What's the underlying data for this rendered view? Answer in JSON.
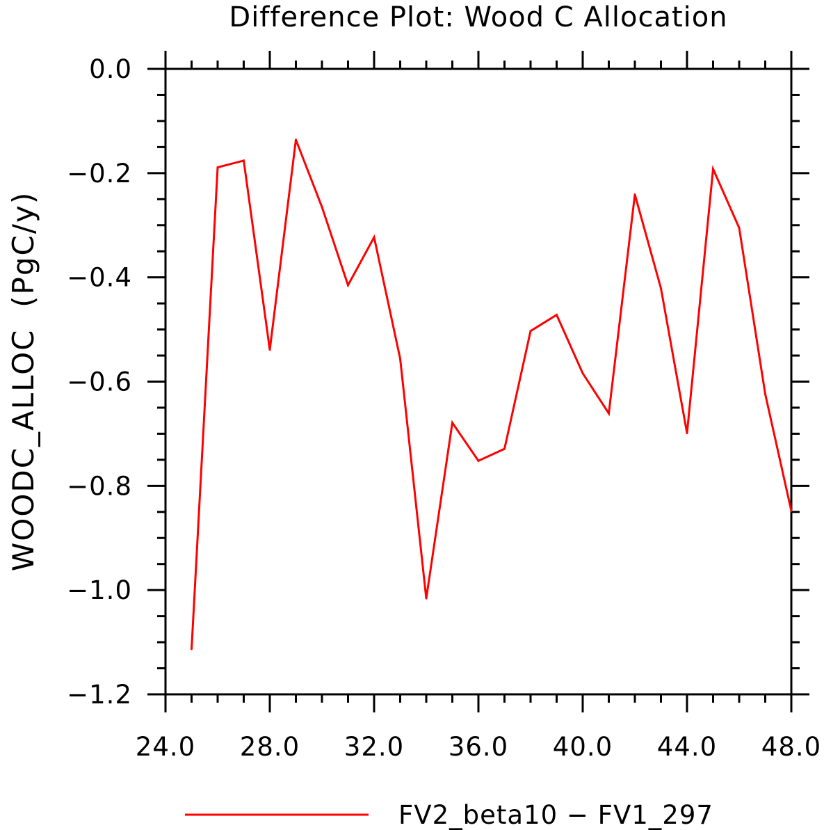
{
  "chart_data": {
    "type": "line",
    "title": "Difference Plot: Wood C Allocation",
    "xlabel": "",
    "ylabel": "WOODC_ALLOC  (PgC/y)",
    "xlim": [
      24.0,
      48.0
    ],
    "ylim": [
      -1.2,
      0.0
    ],
    "x_ticks": [
      "24.0",
      "28.0",
      "32.0",
      "36.0",
      "40.0",
      "44.0",
      "48.0"
    ],
    "y_ticks": [
      "0.0",
      "−0.2",
      "−0.4",
      "−0.6",
      "−0.8",
      "−1.0",
      "−1.2"
    ],
    "grid": false,
    "legend_position": "bottom",
    "series": [
      {
        "name": "FV2_beta10 − FV1_297",
        "color": "#ff0000",
        "x": [
          25,
          26,
          27,
          28,
          29,
          30,
          31,
          32,
          33,
          34,
          35,
          36,
          37,
          38,
          39,
          40,
          41,
          42,
          43,
          44,
          45,
          46,
          47,
          48
        ],
        "y": [
          -1.113,
          -0.189,
          -0.176,
          -0.539,
          -0.136,
          -0.265,
          -0.415,
          -0.323,
          -0.556,
          -1.016,
          -0.679,
          -0.752,
          -0.729,
          -0.503,
          -0.472,
          -0.584,
          -0.661,
          -0.241,
          -0.421,
          -0.699,
          -0.192,
          -0.305,
          -0.624,
          -0.848
        ]
      }
    ]
  }
}
